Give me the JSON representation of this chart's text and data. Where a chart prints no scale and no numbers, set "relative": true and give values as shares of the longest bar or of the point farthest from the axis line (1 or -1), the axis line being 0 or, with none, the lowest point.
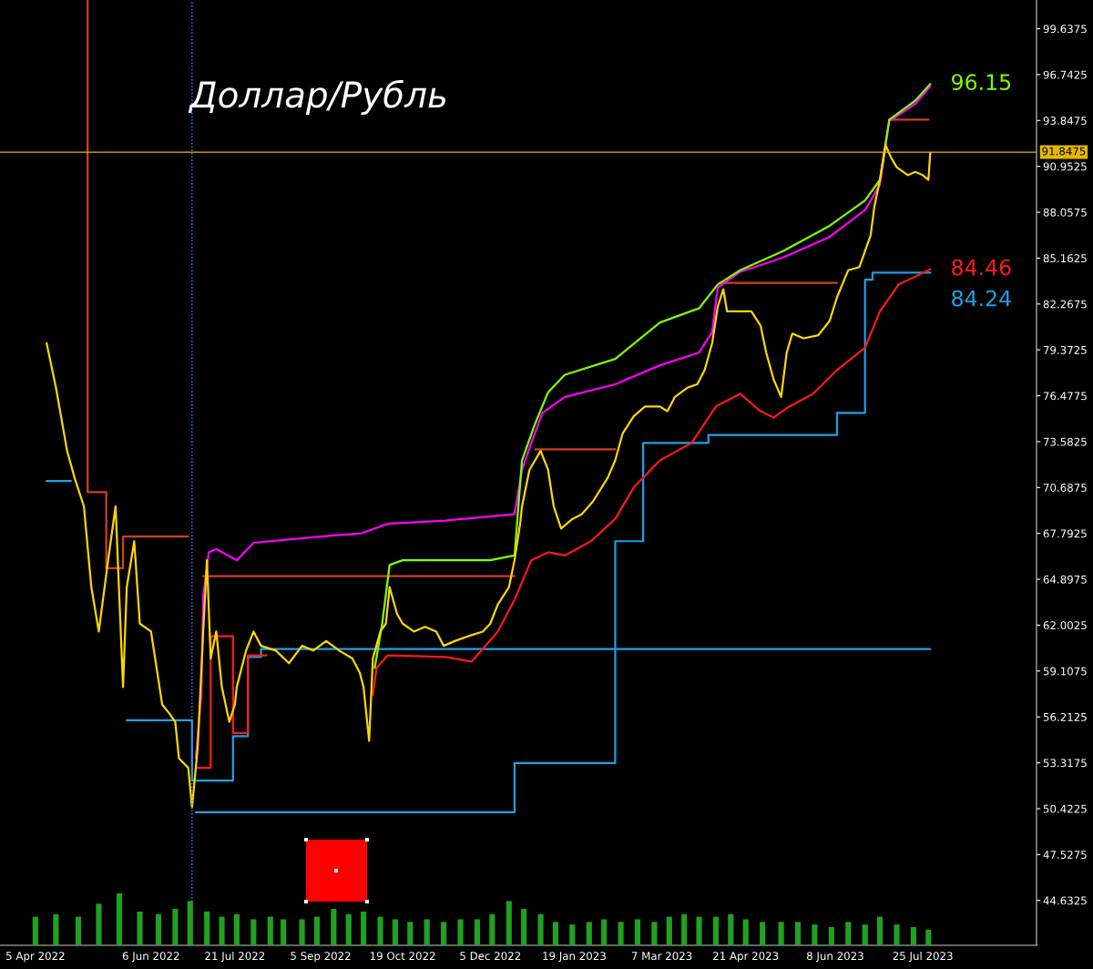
{
  "chart_data": [
    {
      "type": "line",
      "title": "Доллар/Рубль",
      "xlim": [
        "2022-03-17",
        "2023-09-24"
      ],
      "ylim": [
        41.8,
        101.45
      ],
      "xticks": [
        {
          "value": "2022-04-05",
          "label": "5 Apr 2022"
        },
        {
          "value": "2022-06-06",
          "label": "6 Jun 2022"
        },
        {
          "value": "2022-07-21",
          "label": "21 Jul 2022"
        },
        {
          "value": "2022-09-05",
          "label": "5 Sep 2022"
        },
        {
          "value": "2022-10-19",
          "label": "19 Oct 2022"
        },
        {
          "value": "2022-12-05",
          "label": "5 Dec 2022"
        },
        {
          "value": "2023-01-19",
          "label": "19 Jan 2023"
        },
        {
          "value": "2023-03-07",
          "label": "7 Mar 2023"
        },
        {
          "value": "2023-04-21",
          "label": "21 Apr 2023"
        },
        {
          "value": "2023-06-08",
          "label": "8 Jun 2023"
        },
        {
          "value": "2023-07-25",
          "label": "25 Jul 2023"
        }
      ],
      "yticks": [
        99.6375,
        96.7425,
        93.8475,
        90.9525,
        88.0575,
        85.1625,
        82.2675,
        79.3725,
        76.4775,
        73.5825,
        70.6875,
        67.7925,
        64.8975,
        62.0025,
        59.1075,
        56.2125,
        53.3175,
        50.4225,
        47.5275,
        44.6325
      ],
      "ref_lines": [
        {
          "axis": "y",
          "value": 91.8475,
          "label": "91.8475",
          "color": "#e6b800",
          "line_style": "solid"
        },
        {
          "axis": "x",
          "value": "2022-06-28",
          "label": null,
          "color": "#3c8cff",
          "line_style": "dotted"
        }
      ],
      "series": [
        {
          "type": "step",
          "color": "#d2401e",
          "x": [
            "2022-05-03",
            "2022-05-03",
            "2022-05-13",
            "2022-05-22",
            "2022-06-26"
          ],
          "values": [
            101.45,
            70.4,
            65.6,
            67.6,
            67.6
          ]
        },
        {
          "type": "line",
          "color": "#d2401e",
          "x": [
            "2022-07-04",
            "2022-12-18",
            "2022-12-23",
            "2022-12-29",
            "2023-02-10",
            "2023-02-17",
            "2023-04-07",
            "2023-06-09",
            "2023-06-22",
            "2023-07-07",
            "2023-07-28"
          ],
          "values": [
            65.1,
            65.1,
            null,
            73.1,
            73.1,
            null,
            83.6,
            83.6,
            null,
            93.9,
            93.9
          ]
        },
        {
          "type": "step",
          "color": "#1ea0e6",
          "x": [
            "2022-04-11",
            "2022-04-24",
            "2022-05-24",
            "2022-06-28",
            "2022-07-20",
            "2022-07-28",
            "2022-08-04",
            "2023-07-29"
          ],
          "values": [
            71.1,
            null,
            56.0,
            52.2,
            55.0,
            60.0,
            60.5,
            60.5
          ]
        },
        {
          "type": "step",
          "color": "#1ea0e6",
          "x": [
            "2022-06-30",
            "2022-12-18",
            "2023-02-10",
            "2023-02-25",
            "2023-04-01",
            "2023-06-09",
            "2023-06-24",
            "2023-06-28",
            "2023-07-29"
          ],
          "values": [
            50.2,
            53.3,
            67.3,
            73.5,
            74.0,
            75.4,
            83.8,
            84.24,
            84.24
          ],
          "value_labels": [
            null,
            null,
            null,
            null,
            null,
            null,
            null,
            null,
            "84.24"
          ]
        },
        {
          "type": "step",
          "color": "#ff1a1a",
          "x": [
            "2022-06-30",
            "2022-07-08",
            "2022-07-20",
            "2022-07-28",
            "2022-08-07"
          ],
          "values": [
            53.0,
            61.3,
            55.2,
            60.1,
            60.1
          ]
        },
        {
          "type": "line",
          "color": "#ff1a1a",
          "x": [
            "2022-10-03",
            "2022-10-05",
            "2022-10-11",
            "2022-11-11",
            "2022-11-25",
            "2022-12-09",
            "2022-12-18",
            "2022-12-27",
            "2023-01-05",
            "2023-01-14",
            "2023-01-28",
            "2023-02-10",
            "2023-02-20",
            "2023-03-06",
            "2023-03-23",
            "2023-04-05",
            "2023-04-18",
            "2023-04-29",
            "2023-05-06",
            "2023-05-13",
            "2023-05-27",
            "2023-06-09",
            "2023-06-24",
            "2023-07-02",
            "2023-07-12",
            "2023-07-21",
            "2023-07-29"
          ],
          "values": [
            57.6,
            59.3,
            60.1,
            60.0,
            59.7,
            61.6,
            63.6,
            66.1,
            66.6,
            66.4,
            67.3,
            68.7,
            70.7,
            72.4,
            73.5,
            75.8,
            76.6,
            75.5,
            75.1,
            75.7,
            76.6,
            78.1,
            79.5,
            81.8,
            83.5,
            84.0,
            84.46
          ],
          "value_labels": [
            null,
            null,
            null,
            null,
            null,
            null,
            null,
            null,
            null,
            null,
            null,
            null,
            null,
            null,
            null,
            null,
            null,
            null,
            null,
            null,
            null,
            null,
            null,
            null,
            null,
            null,
            "84.46"
          ]
        },
        {
          "type": "line",
          "color": "#ff00ff",
          "x": [
            "2022-06-30",
            "2022-07-03",
            "2022-07-04",
            "2022-07-07",
            "2022-07-11",
            "2022-07-22",
            "2022-07-31",
            "2022-09-05",
            "2022-09-27",
            "2022-10-11",
            "2022-11-11",
            "2022-12-18",
            "2022-12-22",
            "2022-12-27",
            "2023-01-02",
            "2023-01-14",
            "2023-02-10",
            "2023-03-06",
            "2023-03-27",
            "2023-04-03",
            "2023-04-06",
            "2023-04-18",
            "2023-05-11",
            "2023-06-05",
            "2023-06-24",
            "2023-07-02",
            "2023-07-07",
            "2023-07-21",
            "2023-07-29"
          ],
          "values": [
            53.6,
            57.6,
            63.8,
            66.6,
            66.8,
            66.1,
            67.2,
            67.6,
            67.8,
            68.4,
            68.6,
            69.0,
            71.8,
            73.5,
            75.4,
            76.4,
            77.2,
            78.4,
            79.2,
            80.5,
            83.3,
            84.3,
            85.2,
            86.5,
            88.2,
            89.8,
            93.8,
            94.9,
            96.0
          ]
        },
        {
          "type": "line",
          "color": "#80ff00",
          "x": [
            "2022-10-04",
            "2022-10-08",
            "2022-10-12",
            "2022-10-19",
            "2022-11-11",
            "2022-12-05",
            "2022-12-18",
            "2022-12-22",
            "2022-12-29",
            "2023-01-05",
            "2023-01-14",
            "2023-02-10",
            "2023-03-06",
            "2023-03-27",
            "2023-04-06",
            "2023-04-18",
            "2023-05-11",
            "2023-06-05",
            "2023-06-24",
            "2023-07-02",
            "2023-07-07",
            "2023-07-21",
            "2023-07-29"
          ],
          "values": [
            59.3,
            62.1,
            65.8,
            66.1,
            66.1,
            66.1,
            66.4,
            72.4,
            74.7,
            76.7,
            77.8,
            78.8,
            81.1,
            82.0,
            83.5,
            84.4,
            85.6,
            87.2,
            88.8,
            90.1,
            93.9,
            95.1,
            96.15
          ],
          "value_labels": [
            null,
            null,
            null,
            null,
            null,
            null,
            null,
            null,
            null,
            null,
            null,
            null,
            null,
            null,
            null,
            null,
            null,
            null,
            null,
            null,
            null,
            null,
            "96.15"
          ]
        },
        {
          "type": "line",
          "color": "#ffd700",
          "x": [
            "2022-04-11",
            "2022-04-16",
            "2022-04-22",
            "2022-04-26",
            "2022-05-01",
            "2022-05-05",
            "2022-05-09",
            "2022-05-14",
            "2022-05-18",
            "2022-05-22",
            "2022-05-24",
            "2022-05-28",
            "2022-05-31",
            "2022-06-06",
            "2022-06-09",
            "2022-06-12",
            "2022-06-16",
            "2022-06-19",
            "2022-06-21",
            "2022-06-26",
            "2022-06-28",
            "2022-07-01",
            "2022-07-04",
            "2022-07-06",
            "2022-07-08",
            "2022-07-11",
            "2022-07-14",
            "2022-07-18",
            "2022-07-21",
            "2022-07-22",
            "2022-07-27",
            "2022-07-31",
            "2022-08-04",
            "2022-08-12",
            "2022-08-19",
            "2022-08-26",
            "2022-09-01",
            "2022-09-08",
            "2022-09-15",
            "2022-09-22",
            "2022-09-26",
            "2022-09-28",
            "2022-10-01",
            "2022-10-03",
            "2022-10-07",
            "2022-10-10",
            "2022-10-12",
            "2022-10-16",
            "2022-10-19",
            "2022-10-25",
            "2022-10-31",
            "2022-11-06",
            "2022-11-10",
            "2022-11-16",
            "2022-11-23",
            "2022-12-01",
            "2022-12-05",
            "2022-12-09",
            "2022-12-15",
            "2022-12-18",
            "2022-12-21",
            "2022-12-22",
            "2022-12-26",
            "2022-12-29",
            "2023-01-01",
            "2023-01-05",
            "2023-01-08",
            "2023-01-12",
            "2023-01-15",
            "2023-01-18",
            "2023-01-23",
            "2023-01-29",
            "2023-02-06",
            "2023-02-10",
            "2023-02-14",
            "2023-02-20",
            "2023-02-26",
            "2023-03-06",
            "2023-03-10",
            "2023-03-14",
            "2023-03-21",
            "2023-03-26",
            "2023-03-30",
            "2023-04-03",
            "2023-04-06",
            "2023-04-09",
            "2023-04-11",
            "2023-04-18",
            "2023-04-24",
            "2023-04-29",
            "2023-05-02",
            "2023-05-06",
            "2023-05-10",
            "2023-05-13",
            "2023-05-16",
            "2023-05-22",
            "2023-05-30",
            "2023-06-05",
            "2023-06-09",
            "2023-06-15",
            "2023-06-21",
            "2023-06-27",
            "2023-06-29",
            "2023-07-02",
            "2023-07-05",
            "2023-07-08",
            "2023-07-11",
            "2023-07-17",
            "2023-07-21",
            "2023-07-25",
            "2023-07-28",
            "2023-07-29"
          ],
          "values": [
            79.8,
            77.0,
            73.0,
            71.3,
            69.5,
            64.4,
            61.6,
            66.1,
            69.5,
            58.1,
            64.4,
            67.3,
            62.1,
            61.6,
            59.3,
            57.0,
            56.4,
            55.9,
            53.6,
            53.0,
            50.5,
            54.2,
            61.6,
            66.1,
            59.9,
            61.6,
            58.1,
            55.9,
            57.0,
            58.1,
            60.4,
            61.6,
            60.7,
            60.4,
            59.6,
            60.7,
            60.4,
            61.0,
            60.4,
            59.9,
            59.0,
            58.1,
            54.7,
            59.9,
            61.6,
            62.1,
            64.4,
            62.7,
            62.1,
            61.6,
            61.9,
            61.6,
            60.7,
            61.0,
            61.3,
            61.6,
            62.1,
            63.3,
            64.4,
            66.1,
            68.4,
            69.5,
            71.8,
            72.4,
            73.0,
            71.8,
            69.5,
            68.1,
            68.4,
            68.7,
            69.0,
            69.8,
            71.3,
            72.4,
            74.1,
            75.2,
            75.8,
            75.8,
            75.5,
            76.4,
            77.0,
            77.2,
            78.1,
            79.8,
            82.1,
            83.2,
            81.8,
            81.8,
            81.8,
            80.9,
            79.2,
            77.5,
            76.4,
            79.2,
            80.4,
            80.1,
            80.3,
            81.2,
            82.7,
            84.4,
            84.6,
            86.6,
            88.4,
            90.1,
            92.3,
            91.5,
            90.9,
            90.4,
            90.6,
            90.4,
            90.1,
            91.8
          ]
        }
      ]
    },
    {
      "type": "bar",
      "relative": true,
      "tick_labels": false,
      "color": "#22a022",
      "xlim": [
        "2022-03-17",
        "2023-09-24"
      ],
      "x": [
        "2022-04-05",
        "2022-04-16",
        "2022-04-28",
        "2022-05-09",
        "2022-05-20",
        "2022-05-31",
        "2022-06-10",
        "2022-06-19",
        "2022-06-27",
        "2022-07-06",
        "2022-07-14",
        "2022-07-22",
        "2022-07-31",
        "2022-08-09",
        "2022-08-16",
        "2022-08-26",
        "2022-09-03",
        "2022-09-12",
        "2022-09-20",
        "2022-09-28",
        "2022-10-07",
        "2022-10-15",
        "2022-10-23",
        "2022-11-01",
        "2022-11-10",
        "2022-11-19",
        "2022-11-28",
        "2022-12-06",
        "2022-12-15",
        "2022-12-23",
        "2023-01-01",
        "2023-01-09",
        "2023-01-18",
        "2023-01-27",
        "2023-02-04",
        "2023-02-13",
        "2023-02-22",
        "2023-03-03",
        "2023-03-11",
        "2023-03-19",
        "2023-03-27",
        "2023-04-05",
        "2023-04-13",
        "2023-04-21",
        "2023-04-30",
        "2023-05-10",
        "2023-05-19",
        "2023-05-28",
        "2023-06-06",
        "2023-06-15",
        "2023-06-24",
        "2023-07-02",
        "2023-07-11",
        "2023-07-20",
        "2023-07-28"
      ],
      "values": [
        0.55,
        0.6,
        0.55,
        0.8,
        1.0,
        0.65,
        0.6,
        0.7,
        0.85,
        0.65,
        0.55,
        0.6,
        0.5,
        0.55,
        0.5,
        0.5,
        0.55,
        0.7,
        0.6,
        0.65,
        0.55,
        0.5,
        0.45,
        0.5,
        0.45,
        0.5,
        0.5,
        0.6,
        0.85,
        0.7,
        0.6,
        0.45,
        0.4,
        0.45,
        0.5,
        0.45,
        0.5,
        0.45,
        0.55,
        0.6,
        0.55,
        0.55,
        0.6,
        0.5,
        0.45,
        0.45,
        0.45,
        0.4,
        0.35,
        0.45,
        0.4,
        0.55,
        0.4,
        0.35,
        0.3
      ]
    }
  ]
}
